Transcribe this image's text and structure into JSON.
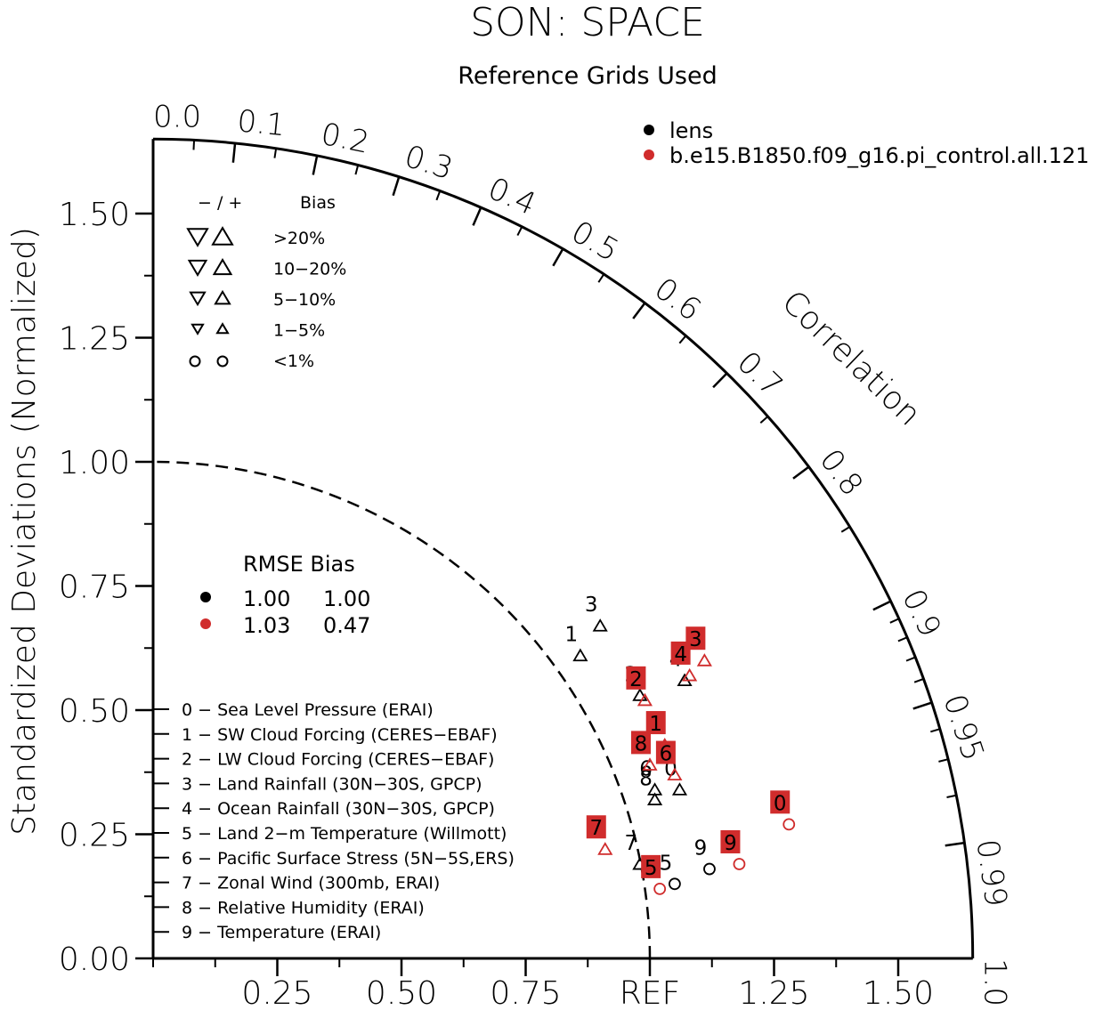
{
  "header": {
    "title": "SON: SPACE",
    "subtitle": "Reference Grids Used"
  },
  "chart_data": {
    "type": "scatter",
    "diagram": "taylor",
    "title": "SON: SPACE",
    "subtitle": "Reference Grids Used",
    "ylabel": "Standardized Deviations (Normalized)",
    "xlabel": "",
    "arc_label": "Correlation",
    "std_range": [
      0,
      1.65
    ],
    "std_ticks": [
      "0.00",
      "0.25",
      "0.50",
      "0.75",
      "1.00",
      "1.25",
      "1.50"
    ],
    "x_ticks": [
      "0.25",
      "0.50",
      "0.75",
      "REF",
      "1.25",
      "1.50"
    ],
    "corr_ticks": [
      "0.0",
      "0.1",
      "0.2",
      "0.3",
      "0.4",
      "0.5",
      "0.6",
      "0.7",
      "0.8",
      "0.9",
      "0.95",
      "0.99",
      "1.0"
    ],
    "ref_std": 1.0,
    "series": [
      {
        "name": "lens",
        "color": "#000000",
        "rmse": "1.00",
        "bias": "1.00",
        "points": [
          {
            "id": "0",
            "x": 1.06,
            "y": 0.34,
            "marker": "triangle-up"
          },
          {
            "id": "1",
            "x": 0.86,
            "y": 0.61,
            "marker": "triangle-up"
          },
          {
            "id": "2",
            "x": 0.98,
            "y": 0.53,
            "marker": "triangle-up"
          },
          {
            "id": "3",
            "x": 0.9,
            "y": 0.67,
            "marker": "triangle-up"
          },
          {
            "id": "4",
            "x": 1.07,
            "y": 0.56,
            "marker": "triangle-up"
          },
          {
            "id": "5",
            "x": 1.05,
            "y": 0.15,
            "marker": "circle"
          },
          {
            "id": "6",
            "x": 1.01,
            "y": 0.34,
            "marker": "triangle-up"
          },
          {
            "id": "7",
            "x": 0.98,
            "y": 0.19,
            "marker": "triangle-up"
          },
          {
            "id": "8",
            "x": 1.01,
            "y": 0.32,
            "marker": "triangle-up"
          },
          {
            "id": "9",
            "x": 1.12,
            "y": 0.18,
            "marker": "circle"
          }
        ]
      },
      {
        "name": "b.e15.B1850.f09_g16.pi_control.all.121",
        "color": "#d02c2c",
        "rmse": "1.03",
        "bias": "0.47",
        "points": [
          {
            "id": "0",
            "x": 1.28,
            "y": 0.27,
            "marker": "circle"
          },
          {
            "id": "1",
            "x": 1.03,
            "y": 0.43,
            "marker": "triangle-up"
          },
          {
            "id": "2",
            "x": 0.99,
            "y": 0.52,
            "marker": "triangle-up"
          },
          {
            "id": "3",
            "x": 1.11,
            "y": 0.6,
            "marker": "triangle-up"
          },
          {
            "id": "4",
            "x": 1.08,
            "y": 0.57,
            "marker": "triangle-up"
          },
          {
            "id": "5",
            "x": 1.02,
            "y": 0.14,
            "marker": "circle"
          },
          {
            "id": "6",
            "x": 1.05,
            "y": 0.37,
            "marker": "triangle-up"
          },
          {
            "id": "7",
            "x": 0.91,
            "y": 0.22,
            "marker": "triangle-up"
          },
          {
            "id": "8",
            "x": 1.0,
            "y": 0.39,
            "marker": "triangle-up"
          },
          {
            "id": "9",
            "x": 1.18,
            "y": 0.19,
            "marker": "circle"
          }
        ]
      }
    ]
  },
  "bias_legend": {
    "header_sign": "− / +",
    "header_label": "Bias",
    "rows": [
      ">20%",
      "10−20%",
      "5−10%",
      "1−5%",
      "<1%"
    ]
  },
  "rmse_legend": {
    "header": "RMSE Bias"
  },
  "variables": [
    "0 − Sea Level Pressure (ERAI)",
    "1 − SW Cloud Forcing (CERES−EBAF)",
    "2 − LW Cloud Forcing (CERES−EBAF)",
    "3 − Land Rainfall (30N−30S, GPCP)",
    "4 − Ocean Rainfall (30N−30S, GPCP)",
    "5 − Land 2−m Temperature (Willmott)",
    "6 − Pacific Surface Stress (5N−5S,ERS)",
    "7 − Zonal Wind (300mb, ERAI)",
    "8 − Relative Humidity (ERAI)",
    "9 − Temperature (ERAI)"
  ]
}
